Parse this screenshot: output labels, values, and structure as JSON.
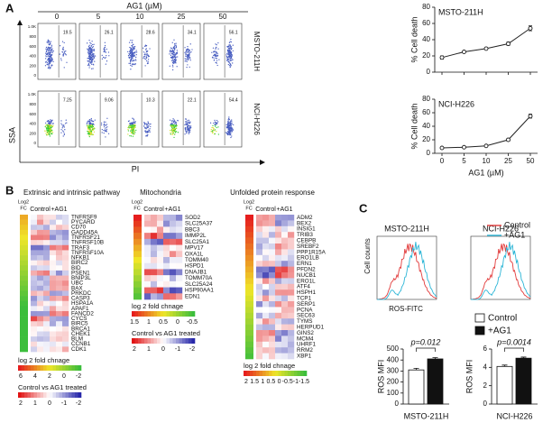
{
  "panel_a": {
    "label": "A",
    "title": "AG1 (µM)",
    "doses": [
      "0",
      "5",
      "10",
      "25",
      "50"
    ],
    "cell_lines": [
      "MSTO-211H",
      "NCI-H226"
    ],
    "gate_values": [
      [
        "19.5",
        "26.1",
        "28.6",
        "34.1",
        "56.1"
      ],
      [
        "7.25",
        "9.06",
        "10.3",
        "22.1",
        "54.4"
      ]
    ],
    "plot_yticks": [
      "1.0K",
      "800",
      "600",
      "400",
      "200",
      "0"
    ],
    "y_label": "SSA",
    "x_label": "PI"
  },
  "chart_data": [
    {
      "type": "line",
      "title": "MSTO-211H",
      "y_label": "% Cell death",
      "categories": [
        "0",
        "5",
        "10",
        "25",
        "50"
      ],
      "values": [
        18,
        25,
        29,
        35,
        54
      ],
      "errors": [
        2,
        1,
        1,
        2,
        3
      ],
      "color": "#222",
      "ylim": [
        0,
        80
      ],
      "yticks": [
        0,
        20,
        40,
        60,
        80
      ]
    },
    {
      "type": "line",
      "title": "NCI-H226",
      "y_label": "% Cell death",
      "x_label": "AG1 (µM)",
      "categories": [
        "0",
        "5",
        "10",
        "25",
        "50"
      ],
      "values": [
        8,
        9,
        11,
        20,
        55
      ],
      "errors": [
        1,
        1,
        1,
        2,
        3
      ],
      "color": "#222",
      "ylim": [
        0,
        80
      ],
      "yticks": [
        0,
        20,
        40,
        60,
        80
      ]
    },
    {
      "type": "bar",
      "y_label": "ROS MFI",
      "x_label": "MSTO-211H",
      "annotation": "p=0.012",
      "series": [
        {
          "name": "Control",
          "color": "#ffffff",
          "values": [
            310
          ],
          "errors": [
            15
          ]
        },
        {
          "name": "+AG1",
          "color": "#111111",
          "values": [
            410
          ],
          "errors": [
            12
          ]
        }
      ],
      "ylim": [
        0,
        500
      ],
      "yticks": [
        0,
        100,
        200,
        300,
        400,
        500
      ]
    },
    {
      "type": "bar",
      "y_label": "ROS MFI",
      "x_label": "NCI-H226",
      "annotation": "p=0.0014",
      "series": [
        {
          "name": "Control",
          "color": "#ffffff",
          "values": [
            4.1
          ],
          "errors": [
            0.15
          ]
        },
        {
          "name": "+AG1",
          "color": "#111111",
          "values": [
            5.0
          ],
          "errors": [
            0.12
          ]
        }
      ],
      "ylim": [
        0,
        6
      ],
      "yticks": [
        0,
        2,
        4,
        6
      ]
    }
  ],
  "panel_b": {
    "label": "B",
    "fc_label": [
      "Log2",
      "FC"
    ],
    "control_label": "Control",
    "treated_label": "+AG1",
    "heatmaps": [
      {
        "title": "Extrinsic and intrinsic pathway",
        "genes": [
          "TNFRSF9",
          "PYCARD",
          "CD70",
          "GADD45A",
          "TNFRSF21",
          "TNFRSF10B",
          "TRAF3",
          "TNFRSF10A",
          "NFKB1",
          "BIRC2",
          "BID",
          "PSEN1",
          "BNIP3L",
          "UBC",
          "BAX",
          "PRKDC",
          "CASP3",
          "HSPA1A",
          "APAF1",
          "FANCD2",
          "CYCS",
          "BIRC5",
          "BRCA1",
          "CHEK1",
          "BLM",
          "CCNB1",
          "CDK1"
        ],
        "legends": [
          {
            "title": "log 2 fold chnage",
            "ticks": [
              6,
              4,
              2,
              0,
              -2
            ]
          },
          {
            "title": "Control vs AG1 treated",
            "ticks": [
              2,
              1,
              0,
              -1,
              -2
            ]
          }
        ]
      },
      {
        "title": "Mitochondria",
        "genes": [
          "SOD2",
          "SLC25A37",
          "BBC3",
          "IMMP2L",
          "SLC25A1",
          "MPV17",
          "OXA1L",
          "TOMM40",
          "HSPD1",
          "DNAJB1",
          "TOMM70A",
          "SLC25A24",
          "HSP90AA1",
          "EDN1"
        ],
        "legends": [
          {
            "title": "log 2 fold chnage",
            "ticks": [
              1.5,
              1,
              0.5,
              0,
              -0.5
            ]
          },
          {
            "title": "Control vs AG1 treated",
            "ticks": [
              2,
              1,
              0,
              -1,
              -2
            ]
          }
        ]
      },
      {
        "title": "Unfolded protein response",
        "genes": [
          "ADM2",
          "BEX2",
          "INSIG1",
          "TRIB3",
          "CEBPB",
          "SREBF2",
          "PPP1R15A",
          "ERO1LB",
          "ERN1",
          "PFDN2",
          "NUCB1",
          "ERO1L",
          "ATF4",
          "HSPH1",
          "TCP1",
          "SERP1",
          "PCNA",
          "SEC63",
          "TYMS",
          "HERPUD1",
          "GINS2",
          "MCM4",
          "UHRF1",
          "RRM2",
          "XBP1"
        ],
        "legends": [
          {
            "title": "log 2 fold chnage",
            "ticks": [
              2,
              1.5,
              1,
              0.5,
              0,
              -0.5,
              -1,
              -1.5
            ]
          }
        ]
      }
    ]
  },
  "panel_c": {
    "label": "C",
    "cell_lines": [
      "MSTO-211H",
      "NCI-H226"
    ],
    "legend": [
      "Control",
      "+AG1"
    ],
    "y_label": "Cell counts",
    "x_label": "ROS-FITC"
  }
}
